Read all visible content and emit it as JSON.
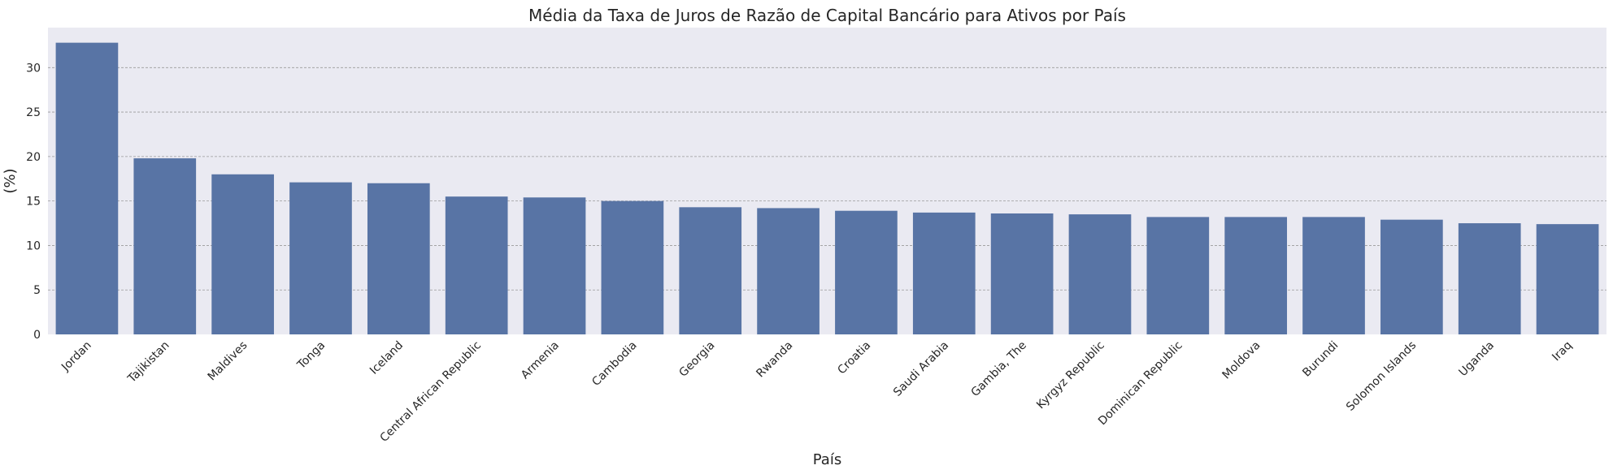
{
  "chart_data": {
    "type": "bar",
    "title": "Média da Taxa de Juros de Razão de Capital Bancário para Ativos por País",
    "xlabel": "País",
    "ylabel": "(%)",
    "categories": [
      "Jordan",
      "Tajikistan",
      "Maldives",
      "Tonga",
      "Iceland",
      "Central African Republic",
      "Armenia",
      "Cambodia",
      "Georgia",
      "Rwanda",
      "Croatia",
      "Saudi Arabia",
      "Gambia, The",
      "Kyrgyz Republic",
      "Dominican Republic",
      "Moldova",
      "Burundi",
      "Solomon Islands",
      "Uganda",
      "Iraq"
    ],
    "values": [
      32.8,
      19.8,
      18.0,
      17.1,
      17.0,
      15.5,
      15.4,
      15.0,
      14.3,
      14.2,
      13.9,
      13.7,
      13.6,
      13.5,
      13.2,
      13.2,
      13.2,
      12.9,
      12.5,
      12.4
    ],
    "ylim": [
      0,
      34.5
    ],
    "yticks": [
      0,
      5,
      10,
      15,
      20,
      25,
      30
    ],
    "grid": true,
    "colors": {
      "bar": "#5874a5",
      "plot_bg": "#eaeaf2",
      "grid": "#9a9a9a"
    }
  }
}
